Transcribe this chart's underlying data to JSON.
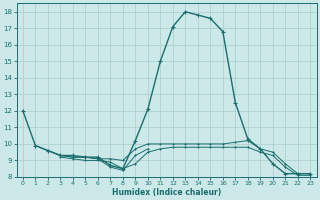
{
  "xlabel": "Humidex (Indice chaleur)",
  "background_color": "#cce8e8",
  "grid_color": "#b0d0d0",
  "line_color": "#1a6e6e",
  "xlim": [
    -0.5,
    23.5
  ],
  "ylim": [
    8,
    18.5
  ],
  "yticks": [
    8,
    9,
    10,
    11,
    12,
    13,
    14,
    15,
    16,
    17,
    18
  ],
  "xticks": [
    0,
    1,
    2,
    3,
    4,
    5,
    6,
    7,
    8,
    9,
    10,
    11,
    12,
    13,
    14,
    15,
    16,
    17,
    18,
    19,
    20,
    21,
    22,
    23
  ],
  "lines": [
    {
      "x": [
        0,
        1,
        2,
        3,
        4,
        5,
        6,
        7,
        8,
        9,
        10,
        11,
        12,
        13,
        14,
        15,
        16,
        17,
        18,
        19,
        20,
        21,
        22,
        23
      ],
      "y": [
        12.0,
        9.9,
        9.6,
        9.3,
        9.3,
        9.2,
        9.2,
        8.7,
        8.5,
        10.2,
        12.1,
        15.0,
        17.1,
        18.0,
        17.8,
        17.6,
        16.8,
        12.5,
        10.3,
        9.7,
        8.8,
        8.2,
        8.2,
        8.2
      ]
    },
    {
      "x": [
        1,
        2,
        3,
        4,
        5,
        6,
        7,
        8,
        9,
        10,
        11,
        12,
        13,
        14,
        15,
        16,
        17,
        18,
        19,
        20,
        21,
        22,
        23
      ],
      "y": [
        9.9,
        9.6,
        9.3,
        9.2,
        9.2,
        9.1,
        9.1,
        9.0,
        9.7,
        10.0,
        10.0,
        10.0,
        10.0,
        10.0,
        10.0,
        10.0,
        10.1,
        10.2,
        9.7,
        9.5,
        8.8,
        8.2,
        8.2
      ]
    },
    {
      "x": [
        2,
        3,
        4,
        5,
        6,
        7,
        8,
        9,
        10
      ],
      "y": [
        9.6,
        9.3,
        9.2,
        9.2,
        9.1,
        8.6,
        8.4,
        9.3,
        9.7
      ]
    },
    {
      "x": [
        3,
        4,
        5,
        6,
        7,
        8,
        9,
        10,
        11,
        12,
        13,
        14,
        15,
        16,
        17,
        18,
        19,
        20,
        21,
        22,
        23
      ],
      "y": [
        9.2,
        9.1,
        9.0,
        9.0,
        8.9,
        8.5,
        8.8,
        9.5,
        9.7,
        9.8,
        9.8,
        9.8,
        9.8,
        9.8,
        9.8,
        9.8,
        9.5,
        9.3,
        8.6,
        8.1,
        8.1
      ]
    }
  ]
}
